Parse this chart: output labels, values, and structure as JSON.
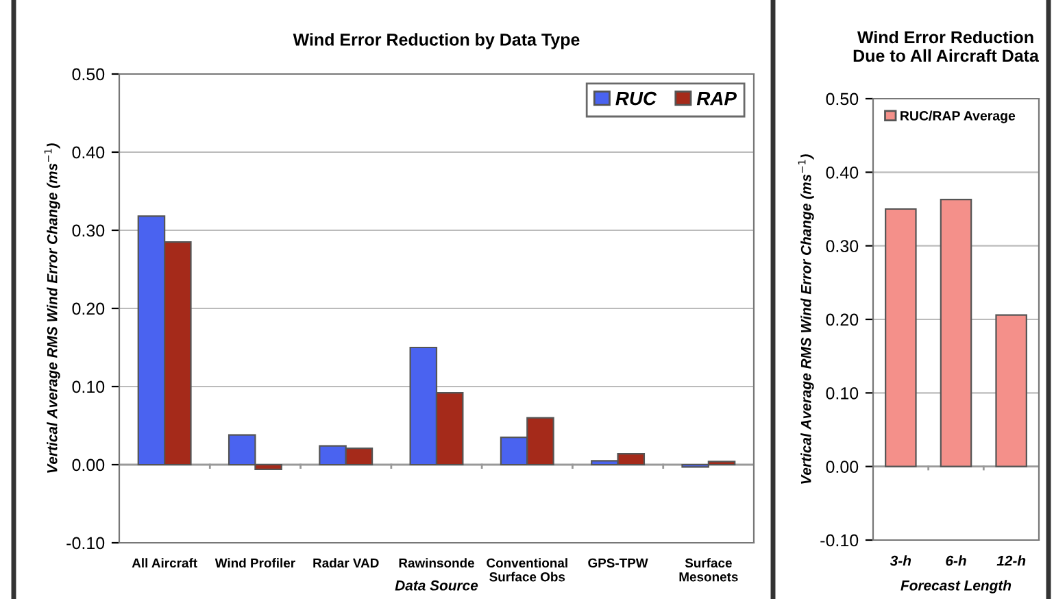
{
  "chart_data": [
    {
      "type": "bar",
      "title": "Wind Error Reduction by Data Type",
      "xlabel": "Data Source",
      "ylabel": "Vertical Average RMS Wind Error Change (ms$^{−1}$)",
      "categories": [
        "All Aircraft",
        "Wind Profiler",
        "Radar VAD",
        "Rawinsonde",
        "Conventional\nSurface Obs",
        "GPS-TPW",
        "Surface\nMesonets"
      ],
      "series": [
        {
          "name": "RUC",
          "color": "#4a63f0",
          "values": [
            0.318,
            0.038,
            0.024,
            0.15,
            0.035,
            0.005,
            -0.003
          ]
        },
        {
          "name": "RAP",
          "color": "#a52a1a",
          "values": [
            0.285,
            -0.006,
            0.021,
            0.092,
            0.06,
            0.014,
            0.004
          ]
        }
      ],
      "ylim": [
        -0.1,
        0.5
      ],
      "yticks": [
        {
          "value": -0.1,
          "label": "-0.10"
        },
        {
          "value": 0,
          "label": "0.00"
        },
        {
          "value": 0.1,
          "label": "0.10"
        },
        {
          "value": 0.2,
          "label": "0.20"
        },
        {
          "value": 0.3,
          "label": "0.30"
        },
        {
          "value": 0.4,
          "label": "0.40"
        },
        {
          "value": 0.5,
          "label": "0.50"
        }
      ],
      "grid": "y",
      "legend": "top right"
    },
    {
      "type": "bar",
      "title": "Wind Error Reduction\nDue to All Aircraft Data",
      "xlabel": "Forecast Length",
      "ylabel": "Vertical Average RMS Wind Error Change (ms$^{−1}$)",
      "categories": [
        "3-h",
        "6-h",
        "12-h"
      ],
      "series": [
        {
          "name": "RUC/RAP Average",
          "color": "#f4908a",
          "values": [
            0.35,
            0.363,
            0.206
          ]
        }
      ],
      "ylim": [
        -0.1,
        0.5
      ],
      "yticks": [
        {
          "value": -0.1,
          "label": "-0.10"
        },
        {
          "value": 0,
          "label": "0.00"
        },
        {
          "value": 0.1,
          "label": "0.10"
        },
        {
          "value": 0.2,
          "label": "0.20"
        },
        {
          "value": 0.3,
          "label": "0.30"
        },
        {
          "value": 0.4,
          "label": "0.40"
        },
        {
          "value": 0.5,
          "label": "0.50"
        }
      ],
      "grid": "y",
      "legend": "top left"
    }
  ]
}
